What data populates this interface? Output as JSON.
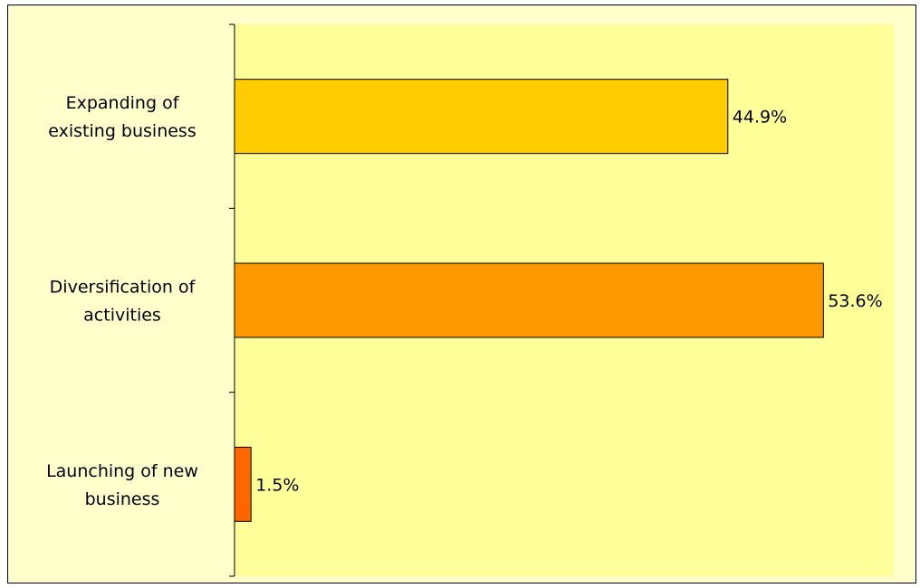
{
  "chart_data": {
    "type": "bar",
    "orientation": "horizontal",
    "categories": [
      [
        "Expanding of",
        "existing business"
      ],
      [
        "Diversification of",
        "activities"
      ],
      [
        "Launching of new",
        "business"
      ]
    ],
    "values": [
      44.9,
      53.6,
      1.5
    ],
    "value_labels": [
      "44.9%",
      "53.6%",
      "1.5%"
    ],
    "colors": [
      "#ffcc00",
      "#ff9900",
      "#ff6600"
    ],
    "xlim": [
      0,
      60
    ],
    "grid": false,
    "legend": "none",
    "plot_background": "#ffff99",
    "chart_background": "#ffffcc"
  }
}
